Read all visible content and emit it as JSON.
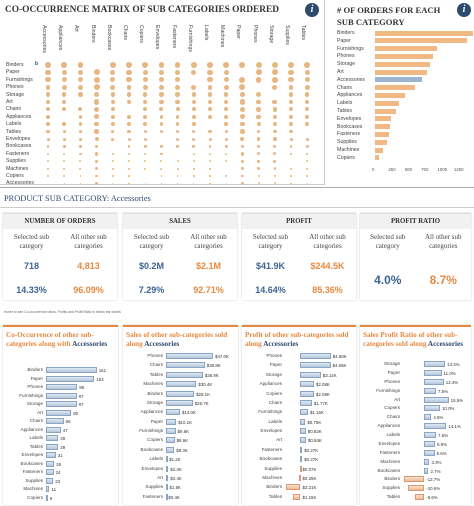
{
  "matrix": {
    "title": "CO-OCCURRENCE MATRIX OF SUB CATEGORIES ORDERED",
    "info": "i",
    "rows": [
      "Binders",
      "Paper",
      "Furnishings",
      "Phones",
      "Storage",
      "Art",
      "Chairs",
      "Appliances",
      "Labels",
      "Tables",
      "Envelopes",
      "Bookcases",
      "Fasteners",
      "Supplies",
      "Machines",
      "Copiers",
      "Accessories"
    ],
    "cols": [
      "Accessories",
      "Appliances",
      "Art",
      "Binders",
      "Bookcases",
      "Chairs",
      "Copiers",
      "Envelopes",
      "Fasteners",
      "Furnishings",
      "Labels",
      "Machines",
      "Paper",
      "Phones",
      "Storage",
      "Supplies",
      "Tables"
    ],
    "highlight_marker": "b"
  },
  "orders": {
    "title": "# OF ORDERS  FOR EACH SUB CATEGORY",
    "info": "i",
    "items": [
      {
        "label": "Binders",
        "value": 1500
      },
      {
        "label": "Paper",
        "value": 1410
      },
      {
        "label": "Furnishings",
        "value": 940
      },
      {
        "label": "Phones",
        "value": 880
      },
      {
        "label": "Storage",
        "value": 840
      },
      {
        "label": "Art",
        "value": 790
      },
      {
        "label": "Accessories",
        "value": 718
      },
      {
        "label": "Chairs",
        "value": 610
      },
      {
        "label": "Appliances",
        "value": 460
      },
      {
        "label": "Labels",
        "value": 360
      },
      {
        "label": "Tables",
        "value": 315
      },
      {
        "label": "Envelopes",
        "value": 250
      },
      {
        "label": "Bookcases",
        "value": 225
      },
      {
        "label": "Fasteners",
        "value": 215
      },
      {
        "label": "Supplies",
        "value": 185
      },
      {
        "label": "Machines",
        "value": 115
      },
      {
        "label": "Copiers",
        "value": 68
      }
    ],
    "ticks": [
      "0",
      "250",
      "500",
      "750",
      "1000",
      "1250"
    ],
    "xmax": 1375
  },
  "product": {
    "prefix": "PRODUCT SUB CATEGORY: ",
    "name": "Accessories"
  },
  "kpis": [
    {
      "header": "NUMBER OF ORDERS",
      "sel_label": "Selected sub category",
      "oth_label": "All other sub categories",
      "sel_v1": "718",
      "oth_v1": "4,813",
      "sel_v2": "14.33%",
      "oth_v2": "96.09%"
    },
    {
      "header": "SALES",
      "sel_label": "Selected sub category",
      "oth_label": "All other sub categories",
      "sel_v1": "$0.2M",
      "oth_v1": "$2.1M",
      "sel_v2": "7.29%",
      "oth_v2": "92.71%"
    },
    {
      "header": "PROFIT",
      "sel_label": "Selected sub category",
      "oth_label": "All other sub categories",
      "sel_v1": "$41.9K",
      "oth_v1": "$244.5K",
      "sel_v2": "14.64%",
      "oth_v2": "85.36%"
    },
    {
      "header": "PROFIT RATIO",
      "sel_label": "Selected sub category",
      "oth_label": "All other sub categories",
      "sel_v1": "4.0%",
      "oth_v1": "8.7%"
    }
  ],
  "note": "Hover to see Co-occurrence ratios. Profits and Profit Ratio in below bar charts",
  "panels": [
    {
      "title": "Co-Occurrence of other sub-categories along with",
      "name": "Accessories",
      "items": [
        [
          "Binders",
          "161",
          161
        ],
        [
          "Paper",
          "153",
          153
        ],
        [
          "Phones",
          "99",
          99
        ],
        [
          "Furnishings",
          "97",
          97
        ],
        [
          "Storage",
          "97",
          97
        ],
        [
          "Art",
          "80",
          80
        ],
        [
          "Chairs",
          "56",
          56
        ],
        [
          "Appliances",
          "47",
          47
        ],
        [
          "Labels",
          "39",
          39
        ],
        [
          "Tables",
          "39",
          39
        ],
        [
          "Envelopes",
          "31",
          31
        ],
        [
          "Bookcases",
          "26",
          26
        ],
        [
          "Fasteners",
          "24",
          24
        ],
        [
          "Supplies",
          "23",
          23
        ],
        [
          "Machines",
          "11",
          11
        ],
        [
          "Copiers",
          "6",
          6
        ]
      ],
      "max": 165
    },
    {
      "title": "Sales of other sub-categories sold along",
      "name": "Accessories",
      "items": [
        [
          "Phones",
          "$47.0K",
          47
        ],
        [
          "Chairs",
          "$38.8K",
          38.8
        ],
        [
          "Tables",
          "$36.9K",
          36.9
        ],
        [
          "Machines",
          "$30.4K",
          30.4
        ],
        [
          "Binders",
          "$28.1K",
          28.1
        ],
        [
          "Storage",
          "$26.7K",
          26.7
        ],
        [
          "Appliances",
          "$14.0K",
          14
        ],
        [
          "Paper",
          "$10.1K",
          10.1
        ],
        [
          "Furnishings",
          "$9.6K",
          9.6
        ],
        [
          "Copiers",
          "$8.6K",
          8.6
        ],
        [
          "Bookcases",
          "$8.3K",
          8.3
        ],
        [
          "Labels",
          "$1.2K",
          1.2
        ],
        [
          "Envelopes",
          "$2.3K",
          2.3
        ],
        [
          "Art",
          "$2.4K",
          2.4
        ],
        [
          "Supplies",
          "$1.5K",
          1.5
        ],
        [
          "Fasteners",
          "$0.4K",
          0.4
        ]
      ],
      "max": 52
    },
    {
      "title": "Profit of other sub-categories sold along",
      "name": "Accessories",
      "items": [
        [
          "Phones",
          "$4.68K",
          4.68
        ],
        [
          "Paper",
          "$4.66K",
          4.66
        ],
        [
          "Storage",
          "$3.14K",
          3.14
        ],
        [
          "Appliances",
          "$2.08K",
          2.08
        ],
        [
          "Copiers",
          "$2.08K",
          2.08
        ],
        [
          "Chairs",
          "$1.77K",
          1.77
        ],
        [
          "Furnishings",
          "$1.16K",
          1.16
        ],
        [
          "Labels",
          "$0.75K",
          0.75
        ],
        [
          "Envelopes",
          "$0.82K",
          0.82
        ],
        [
          "Art",
          "$0.84K",
          0.84
        ],
        [
          "Fasteners",
          "$0.27K",
          0.27
        ],
        [
          "Bookcases",
          "$0.27K",
          0.27
        ],
        [
          "Supplies",
          "$0.07K",
          -0.07
        ],
        [
          "Machines",
          "$0.25K",
          -0.25
        ],
        [
          "Binders",
          "$2.21K",
          -2.21
        ],
        [
          "Tables",
          "$1.15K",
          -1.15
        ]
      ],
      "max": 5.5,
      "neg": 2.4
    },
    {
      "title": "Sales Profit Ratio of other sub-categories sold along",
      "name": "Accessories",
      "items": [
        [
          "Storage",
          "13.3%",
          13.3
        ],
        [
          "Paper",
          "11.0%",
          11
        ],
        [
          "Phones",
          "12.4%",
          12.4
        ],
        [
          "Furnishings",
          "7.5%",
          7.5
        ],
        [
          "Art",
          "15.5%",
          15.5
        ],
        [
          "Copiers",
          "10.0%",
          10
        ],
        [
          "Chairs",
          "4.5%",
          4.5
        ],
        [
          "Appliances",
          "14.1%",
          14.1
        ],
        [
          "Labels",
          "7.5%",
          7.5
        ],
        [
          "Envelopes",
          "6.9%",
          6.9
        ],
        [
          "Fasteners",
          "6.6%",
          6.6
        ],
        [
          "Machines",
          "3.3%",
          3.3
        ],
        [
          "Bookcases",
          "2.7%",
          2.7
        ],
        [
          "Binders",
          "-12.7%",
          -12.7
        ],
        [
          "Supplies",
          "-10.6%",
          -10.6
        ],
        [
          "Tables",
          "-5.6%",
          -5.6
        ]
      ],
      "max": 17,
      "neg": 13.5
    }
  ]
}
